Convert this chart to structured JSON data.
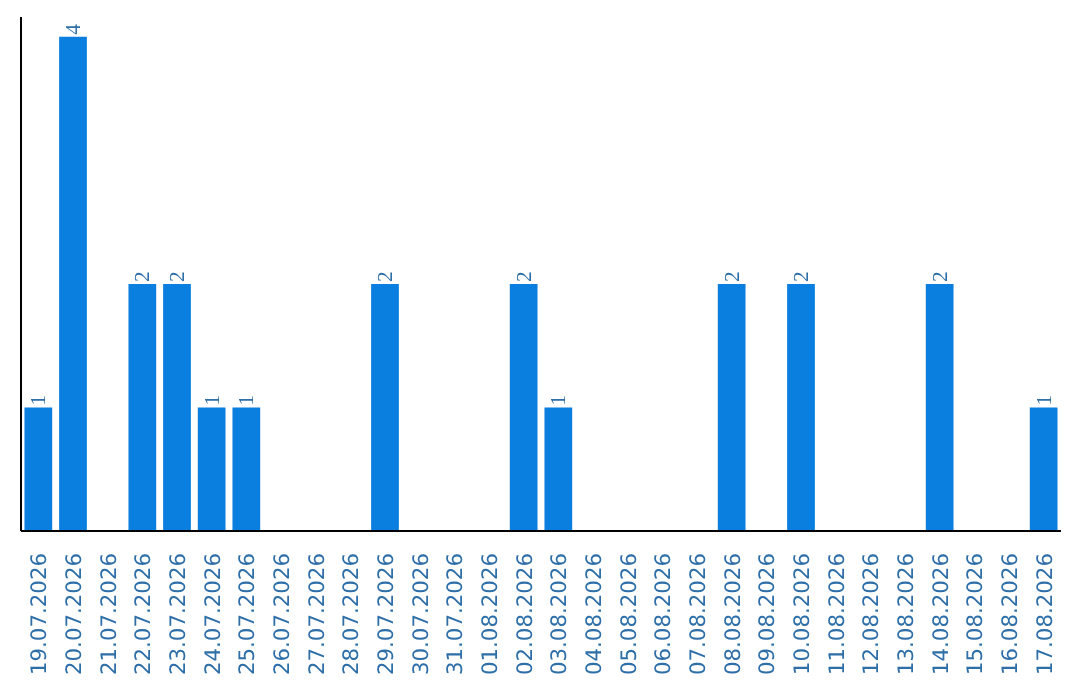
{
  "chart_data": {
    "type": "bar",
    "categories": [
      "19.07.2026",
      "20.07.2026",
      "21.07.2026",
      "22.07.2026",
      "23.07.2026",
      "24.07.2026",
      "25.07.2026",
      "26.07.2026",
      "27.07.2026",
      "28.07.2026",
      "29.07.2026",
      "30.07.2026",
      "31.07.2026",
      "01.08.2026",
      "02.08.2026",
      "03.08.2026",
      "04.08.2026",
      "05.08.2026",
      "06.08.2026",
      "07.08.2026",
      "08.08.2026",
      "09.08.2026",
      "10.08.2026",
      "11.08.2026",
      "12.08.2026",
      "13.08.2026",
      "14.08.2026",
      "15.08.2026",
      "16.08.2026",
      "17.08.2026"
    ],
    "values": [
      1,
      4,
      0,
      2,
      2,
      1,
      1,
      0,
      0,
      0,
      2,
      0,
      0,
      0,
      2,
      1,
      0,
      0,
      0,
      0,
      2,
      0,
      2,
      0,
      0,
      0,
      2,
      0,
      0,
      1
    ],
    "value_labels": [
      "1",
      "4",
      null,
      "2",
      "2",
      "1",
      "1",
      null,
      null,
      null,
      "2",
      null,
      null,
      null,
      "2",
      "1",
      null,
      null,
      null,
      null,
      "2",
      null,
      "2",
      null,
      null,
      null,
      "2",
      null,
      null,
      "1"
    ],
    "color": "#0a7fe0",
    "tick_labels": "x",
    "grid": false
  }
}
